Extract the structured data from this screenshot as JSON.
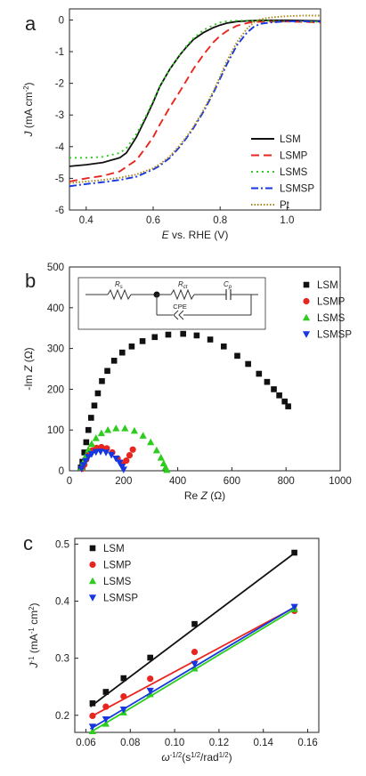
{
  "chart_data": [
    {
      "panel_label": "a",
      "type": "line",
      "xlabel_parts": [
        "E",
        " vs. RHE (V)"
      ],
      "ylabel_parts": [
        "J",
        " (mA cm",
        "-2",
        ")"
      ],
      "xlim": [
        0.35,
        1.1
      ],
      "ylim": [
        -6,
        0.35
      ],
      "xticks": [
        0.4,
        0.6,
        0.8,
        1.0
      ],
      "xtick_labels": [
        "0.4",
        "0.6",
        "0.8",
        "1.0"
      ],
      "yticks": [
        0,
        -1,
        -2,
        -3,
        -4,
        -5,
        -6
      ],
      "ytick_labels": [
        "0",
        "-1",
        "-2",
        "-3",
        "-4",
        "-5",
        "-6"
      ],
      "legend_position": "bottom-right",
      "series": [
        {
          "name": "LSM",
          "color": "#111111",
          "dash": "solid",
          "x": [
            0.35,
            0.4,
            0.45,
            0.5,
            0.52,
            0.55,
            0.58,
            0.6,
            0.62,
            0.65,
            0.68,
            0.7,
            0.72,
            0.75,
            0.78,
            0.8,
            0.82,
            0.85,
            0.88,
            0.9,
            0.95,
            1.0,
            1.05,
            1.1
          ],
          "y": [
            -4.62,
            -4.57,
            -4.5,
            -4.35,
            -4.2,
            -3.7,
            -3.05,
            -2.6,
            -2.1,
            -1.55,
            -1.1,
            -0.85,
            -0.62,
            -0.4,
            -0.24,
            -0.16,
            -0.1,
            -0.05,
            -0.03,
            -0.02,
            -0.01,
            -0.01,
            -0.02,
            -0.03
          ]
        },
        {
          "name": "LSMP",
          "color": "#e8261f",
          "dash": "long-dash",
          "x": [
            0.35,
            0.4,
            0.45,
            0.5,
            0.55,
            0.58,
            0.6,
            0.62,
            0.65,
            0.68,
            0.7,
            0.72,
            0.75,
            0.78,
            0.8,
            0.82,
            0.85,
            0.88,
            0.9,
            0.95,
            1.0,
            1.05,
            1.1
          ],
          "y": [
            -5.1,
            -5.0,
            -4.92,
            -4.78,
            -4.42,
            -4.0,
            -3.7,
            -3.3,
            -2.75,
            -2.25,
            -1.9,
            -1.55,
            -1.1,
            -0.7,
            -0.5,
            -0.35,
            -0.18,
            -0.1,
            -0.06,
            -0.05,
            -0.05,
            -0.06,
            -0.08
          ]
        },
        {
          "name": "LSMS",
          "color": "#2ecc1e",
          "dash": "dot",
          "x": [
            0.35,
            0.4,
            0.45,
            0.5,
            0.52,
            0.55,
            0.58,
            0.6,
            0.62,
            0.65,
            0.68,
            0.7,
            0.72,
            0.75,
            0.78,
            0.8,
            0.82,
            0.85,
            0.88,
            0.9,
            0.95,
            1.0,
            1.05,
            1.1
          ],
          "y": [
            -4.35,
            -4.35,
            -4.32,
            -4.2,
            -4.05,
            -3.6,
            -3.0,
            -2.55,
            -2.1,
            -1.55,
            -1.1,
            -0.82,
            -0.58,
            -0.32,
            -0.16,
            -0.08,
            -0.04,
            -0.02,
            -0.02,
            -0.02,
            -0.03,
            -0.04,
            -0.05,
            -0.06
          ]
        },
        {
          "name": "LSMSP",
          "color": "#1636e0",
          "dash": "dash-dot",
          "x": [
            0.35,
            0.4,
            0.45,
            0.5,
            0.55,
            0.6,
            0.62,
            0.65,
            0.68,
            0.7,
            0.72,
            0.75,
            0.78,
            0.8,
            0.82,
            0.85,
            0.88,
            0.9,
            0.92,
            0.95,
            1.0,
            1.05,
            1.1
          ],
          "y": [
            -5.25,
            -5.18,
            -5.12,
            -5.05,
            -4.95,
            -4.72,
            -4.6,
            -4.35,
            -4.0,
            -3.72,
            -3.42,
            -2.9,
            -2.3,
            -1.85,
            -1.4,
            -0.8,
            -0.4,
            -0.22,
            -0.12,
            -0.08,
            -0.04,
            -0.04,
            -0.05
          ]
        },
        {
          "name": "Pt",
          "color": "#a8861a",
          "dash": "fine-dot",
          "x": [
            0.35,
            0.4,
            0.45,
            0.5,
            0.55,
            0.6,
            0.62,
            0.65,
            0.68,
            0.7,
            0.72,
            0.75,
            0.78,
            0.8,
            0.82,
            0.85,
            0.88,
            0.9,
            0.92,
            0.95,
            1.0,
            1.05,
            1.1
          ],
          "y": [
            -5.15,
            -5.1,
            -5.05,
            -4.98,
            -4.88,
            -4.68,
            -4.55,
            -4.3,
            -3.95,
            -3.68,
            -3.38,
            -2.85,
            -2.25,
            -1.78,
            -1.3,
            -0.7,
            -0.28,
            -0.08,
            0.02,
            0.08,
            0.12,
            0.14,
            0.14
          ]
        }
      ]
    },
    {
      "panel_label": "b",
      "type": "scatter",
      "xlabel_parts": [
        "Re ",
        "Z",
        " (Ω)"
      ],
      "ylabel_parts": [
        "-Im ",
        "Z",
        " (Ω)"
      ],
      "xlim": [
        0,
        1000
      ],
      "ylim": [
        0,
        500
      ],
      "xticks": [
        0,
        200,
        400,
        600,
        800,
        1000
      ],
      "xtick_labels": [
        "0",
        "200",
        "400",
        "600",
        "800",
        "1000"
      ],
      "yticks": [
        0,
        100,
        200,
        300,
        400,
        500
      ],
      "ytick_labels": [
        "0",
        "100",
        "200",
        "300",
        "400",
        "500"
      ],
      "legend_position": "top-right",
      "inset_circuit_labels": {
        "rs": "R",
        "rs_sub": "s",
        "rct": "R",
        "rct_sub": "ct",
        "cp": "C",
        "cp_sub": "p",
        "cpe": "CPE"
      },
      "series": [
        {
          "name": "LSM",
          "color": "#111111",
          "marker": "square",
          "x": [
            42,
            48,
            55,
            62,
            70,
            80,
            92,
            105,
            120,
            140,
            165,
            195,
            230,
            270,
            315,
            365,
            420,
            470,
            520,
            570,
            620,
            660,
            700,
            730,
            755,
            775,
            795,
            808
          ],
          "y": [
            8,
            22,
            45,
            70,
            100,
            130,
            160,
            190,
            220,
            245,
            270,
            290,
            305,
            318,
            328,
            334,
            336,
            332,
            322,
            305,
            282,
            262,
            238,
            218,
            200,
            185,
            170,
            158
          ]
        },
        {
          "name": "LSMP",
          "color": "#e8261f",
          "marker": "circle",
          "x": [
            48,
            55,
            62,
            72,
            85,
            100,
            118,
            138,
            158,
            178,
            196,
            210,
            222,
            234
          ],
          "y": [
            5,
            15,
            28,
            40,
            50,
            56,
            58,
            55,
            45,
            30,
            18,
            25,
            38,
            52
          ]
        },
        {
          "name": "LSMS",
          "color": "#2ecc1e",
          "marker": "triangle-up",
          "x": [
            45,
            52,
            60,
            70,
            82,
            98,
            118,
            142,
            172,
            205,
            240,
            272,
            300,
            322,
            338,
            348,
            355,
            360
          ],
          "y": [
            8,
            22,
            36,
            52,
            66,
            80,
            92,
            100,
            104,
            104,
            98,
            86,
            70,
            50,
            32,
            18,
            8,
            2
          ]
        },
        {
          "name": "LSMSP",
          "color": "#1636e0",
          "marker": "triangle-down",
          "x": [
            45,
            52,
            60,
            70,
            82,
            98,
            115,
            135,
            155,
            172,
            185,
            194,
            200
          ],
          "y": [
            5,
            14,
            24,
            34,
            41,
            46,
            47,
            45,
            39,
            30,
            20,
            10,
            3
          ]
        }
      ]
    },
    {
      "panel_label": "c",
      "type": "scatter",
      "xlabel_parts": [
        "ω",
        "-1/2",
        "(s",
        "1/2",
        "/rad",
        "1/2",
        ")"
      ],
      "ylabel_parts": [
        "J",
        "-1",
        " (mA",
        "-1",
        " cm",
        "2",
        ")"
      ],
      "xlim": [
        0.055,
        0.165
      ],
      "ylim": [
        0.17,
        0.51
      ],
      "xticks": [
        0.06,
        0.08,
        0.1,
        0.12,
        0.14,
        0.16
      ],
      "xtick_labels": [
        "0.06",
        "0.08",
        "0.10",
        "0.12",
        "0.14",
        "0.16"
      ],
      "yticks": [
        0.2,
        0.3,
        0.4,
        0.5
      ],
      "ytick_labels": [
        "0.2",
        "0.3",
        "0.4",
        "0.5"
      ],
      "legend_position": "top-left",
      "series": [
        {
          "name": "LSM",
          "color": "#111111",
          "marker": "square",
          "x": [
            0.063,
            0.069,
            0.077,
            0.089,
            0.109,
            0.154
          ],
          "y": [
            0.221,
            0.241,
            0.265,
            0.301,
            0.36,
            0.485
          ],
          "fit": [
            [
              0.062,
              0.215
            ],
            [
              0.155,
              0.487
            ]
          ]
        },
        {
          "name": "LSMP",
          "color": "#e8261f",
          "marker": "circle",
          "x": [
            0.063,
            0.069,
            0.077,
            0.089,
            0.109,
            0.154
          ],
          "y": [
            0.199,
            0.215,
            0.233,
            0.264,
            0.311,
            0.383
          ],
          "fit": [
            [
              0.062,
              0.197
            ],
            [
              0.155,
              0.391
            ]
          ]
        },
        {
          "name": "LSMS",
          "color": "#2ecc1e",
          "marker": "triangle-up",
          "x": [
            0.063,
            0.069,
            0.077,
            0.089,
            0.109,
            0.154
          ],
          "y": [
            0.172,
            0.185,
            0.205,
            0.237,
            0.282,
            0.386
          ],
          "fit": [
            [
              0.062,
              0.17
            ],
            [
              0.155,
              0.388
            ]
          ]
        },
        {
          "name": "LSMSP",
          "color": "#1636e0",
          "marker": "triangle-down",
          "x": [
            0.063,
            0.069,
            0.077,
            0.089,
            0.109,
            0.154
          ],
          "y": [
            0.18,
            0.193,
            0.21,
            0.243,
            0.29,
            0.39
          ],
          "fit": [
            [
              0.062,
              0.176
            ],
            [
              0.155,
              0.392
            ]
          ]
        }
      ]
    }
  ]
}
